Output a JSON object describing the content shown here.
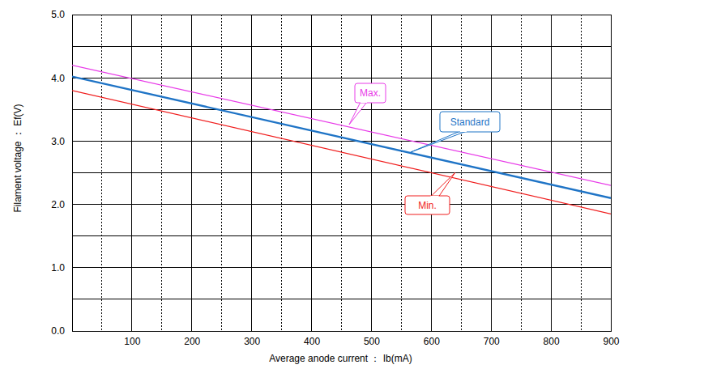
{
  "chart_data": {
    "type": "line",
    "x_label": "Average anode current ： Ib(mA)",
    "y_label": "Filament voltage ： Ef(V)",
    "x": [
      0,
      900
    ],
    "series": [
      {
        "name": "Max.",
        "color": "#e83ce8",
        "values": [
          4.2,
          2.3
        ]
      },
      {
        "name": "Standard",
        "color": "#1f74c6",
        "values": [
          4.02,
          2.1
        ]
      },
      {
        "name": "Min.",
        "color": "#f01e1e",
        "values": [
          3.8,
          1.85
        ]
      }
    ],
    "xlim": [
      0,
      900
    ],
    "xticks": [
      {
        "value": 50,
        "label": null
      },
      100,
      {
        "value": 150,
        "label": null
      },
      200,
      {
        "value": 250,
        "label": null
      },
      300,
      {
        "value": 350,
        "label": null
      },
      400,
      {
        "value": 450,
        "label": null
      },
      500,
      {
        "value": 550,
        "label": null
      },
      600,
      {
        "value": 650,
        "label": null
      },
      700,
      {
        "value": 750,
        "label": null
      },
      800,
      {
        "value": 850,
        "label": null
      },
      900
    ],
    "ylim": [
      0,
      5
    ],
    "yticks": [
      {
        "value": 0,
        "label": "0.0"
      },
      {
        "value": 0.5,
        "label": null
      },
      {
        "value": 1,
        "label": "1.0"
      },
      {
        "value": 1.5,
        "label": null
      },
      {
        "value": 2,
        "label": "2.0"
      },
      {
        "value": 2.5,
        "label": null
      },
      {
        "value": 3,
        "label": "3.0"
      },
      {
        "value": 3.5,
        "label": null
      },
      {
        "value": 4,
        "label": "4.0"
      },
      {
        "value": 4.5,
        "label": null
      },
      {
        "value": 5,
        "label": "5.0"
      }
    ],
    "grid": true
  }
}
